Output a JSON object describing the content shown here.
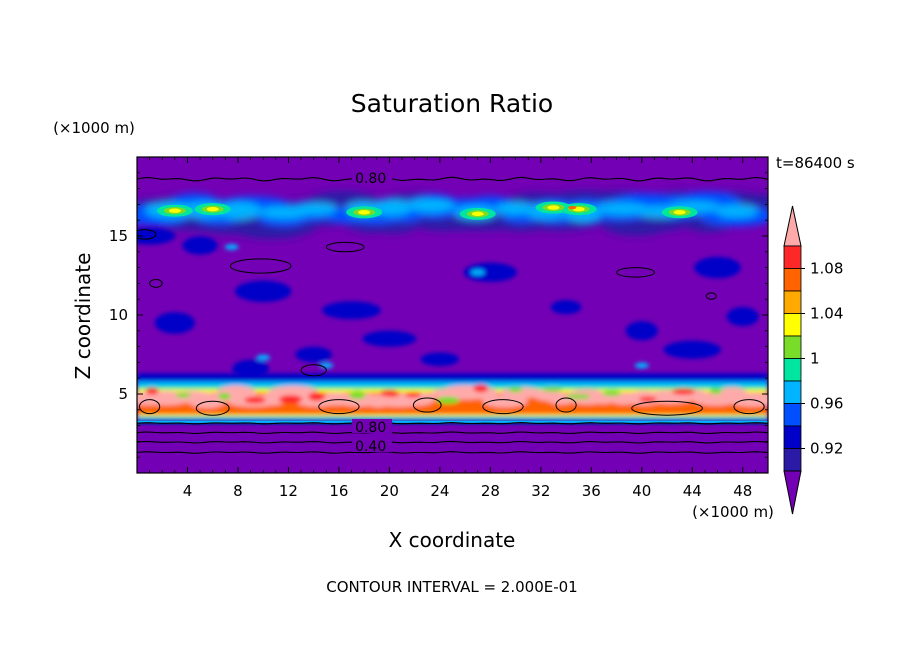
{
  "chart_data": {
    "type": "heatmap",
    "title": "Saturation Ratio",
    "xlabel": "X coordinate",
    "ylabel": "Z coordinate",
    "x_unit": "(×1000 m)",
    "y_unit": "(×1000 m)",
    "time_label": "t=86400 s",
    "footer": "CONTOUR INTERVAL = 2.000E-01",
    "xlim": [
      0,
      50
    ],
    "ylim": [
      0,
      20
    ],
    "x_ticks": [
      "4",
      "8",
      "12",
      "16",
      "20",
      "24",
      "28",
      "32",
      "36",
      "40",
      "44",
      "48"
    ],
    "y_ticks": [
      "5",
      "10",
      "15"
    ],
    "contour_labels": [
      "0.80",
      "0.80",
      "0.40"
    ],
    "colorbar": {
      "tick_labels": [
        "0.92",
        "0.96",
        "1",
        "1.04",
        "1.08"
      ],
      "levels": [
        0.92,
        0.94,
        0.96,
        0.98,
        1.0,
        1.02,
        1.04,
        1.06,
        1.08,
        1.1
      ],
      "colors": [
        "#7300b4",
        "#2a1aa6",
        "#0000c8",
        "#0050ff",
        "#00b4ff",
        "#00e6a0",
        "#78dc28",
        "#ffff00",
        "#ffaa00",
        "#ff6400",
        "#ff2828",
        "#ffaaaa"
      ]
    },
    "regions": [
      {
        "band": "background",
        "z_range": [
          0,
          20
        ],
        "color": "#7300b4"
      },
      {
        "band": "upper moist layer",
        "z_range": [
          14.5,
          18
        ],
        "max_ratio": 1.06
      },
      {
        "band": "lower moist layer",
        "z_range": [
          3.2,
          6
        ],
        "max_ratio": 1.1
      }
    ]
  }
}
